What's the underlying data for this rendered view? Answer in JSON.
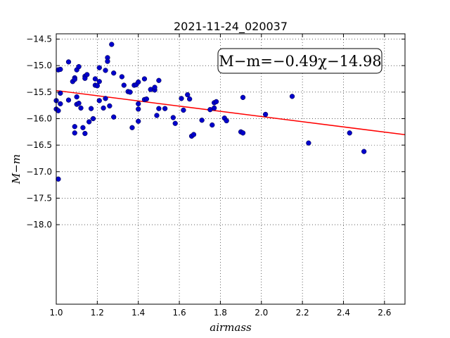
{
  "chart_data": {
    "type": "scatter",
    "title": "2021-11-24_020037",
    "xlabel": "airmass",
    "ylabel": "M−m",
    "xlim": [
      1.0,
      2.7
    ],
    "ylim": [
      -14.4,
      -19.5
    ],
    "y_inverted": true,
    "grid": true,
    "x_ticks": [
      1.0,
      1.2,
      1.4,
      1.6,
      1.8,
      2.0,
      2.2,
      2.4,
      2.6
    ],
    "x_tick_labels": [
      "1.0",
      "1.2",
      "1.4",
      "1.6",
      "1.8",
      "2.0",
      "2.2",
      "2.4",
      "2.6"
    ],
    "y_ticks": [
      -14.5,
      -15.0,
      -15.5,
      -16.0,
      -16.5,
      -17.0,
      -17.5,
      -18.0
    ],
    "y_tick_labels": [
      "−14.5",
      "−15.0",
      "−15.5",
      "−16.0",
      "−16.5",
      "−17.0",
      "−17.5",
      "−18.0"
    ],
    "annotation": "M−m=−0.49χ−14.98",
    "fit": {
      "slope": -0.49,
      "intercept": -14.98,
      "color": "#ff0000"
    },
    "point_color": "#0000cc",
    "points": [
      [
        1.0,
        -15.66
      ],
      [
        1.0,
        -15.82
      ],
      [
        1.01,
        -15.85
      ],
      [
        1.01,
        -17.14
      ],
      [
        1.01,
        -15.08
      ],
      [
        1.02,
        -15.07
      ],
      [
        1.02,
        -15.52
      ],
      [
        1.02,
        -15.72
      ],
      [
        1.06,
        -14.93
      ],
      [
        1.06,
        -15.65
      ],
      [
        1.08,
        -15.3
      ],
      [
        1.09,
        -15.23
      ],
      [
        1.09,
        -15.26
      ],
      [
        1.09,
        -16.15
      ],
      [
        1.09,
        -16.27
      ],
      [
        1.1,
        -15.08
      ],
      [
        1.1,
        -15.59
      ],
      [
        1.1,
        -15.73
      ],
      [
        1.11,
        -15.02
      ],
      [
        1.11,
        -15.71
      ],
      [
        1.12,
        -15.8
      ],
      [
        1.13,
        -16.17
      ],
      [
        1.14,
        -15.2
      ],
      [
        1.14,
        -15.24
      ],
      [
        1.14,
        -16.28
      ],
      [
        1.15,
        -15.17
      ],
      [
        1.16,
        -16.06
      ],
      [
        1.17,
        -15.81
      ],
      [
        1.18,
        -16.0
      ],
      [
        1.19,
        -15.25
      ],
      [
        1.19,
        -15.37
      ],
      [
        1.2,
        -15.38
      ],
      [
        1.21,
        -15.04
      ],
      [
        1.21,
        -15.3
      ],
      [
        1.21,
        -15.66
      ],
      [
        1.23,
        -15.8
      ],
      [
        1.24,
        -15.09
      ],
      [
        1.24,
        -15.62
      ],
      [
        1.25,
        -14.85
      ],
      [
        1.25,
        -14.92
      ],
      [
        1.26,
        -15.76
      ],
      [
        1.27,
        -14.6
      ],
      [
        1.28,
        -15.14
      ],
      [
        1.28,
        -15.97
      ],
      [
        1.32,
        -15.21
      ],
      [
        1.33,
        -15.37
      ],
      [
        1.35,
        -15.49
      ],
      [
        1.36,
        -15.5
      ],
      [
        1.37,
        -16.17
      ],
      [
        1.38,
        -15.37
      ],
      [
        1.39,
        -15.36
      ],
      [
        1.4,
        -15.31
      ],
      [
        1.4,
        -15.72
      ],
      [
        1.4,
        -15.82
      ],
      [
        1.4,
        -16.05
      ],
      [
        1.43,
        -15.25
      ],
      [
        1.43,
        -15.64
      ],
      [
        1.44,
        -15.63
      ],
      [
        1.46,
        -15.45
      ],
      [
        1.48,
        -15.46
      ],
      [
        1.48,
        -15.41
      ],
      [
        1.49,
        -15.94
      ],
      [
        1.5,
        -15.81
      ],
      [
        1.5,
        -15.28
      ],
      [
        1.53,
        -15.81
      ],
      [
        1.57,
        -15.98
      ],
      [
        1.58,
        -16.09
      ],
      [
        1.61,
        -15.62
      ],
      [
        1.62,
        -15.84
      ],
      [
        1.64,
        -15.55
      ],
      [
        1.65,
        -15.63
      ],
      [
        1.66,
        -16.33
      ],
      [
        1.67,
        -16.3
      ],
      [
        1.71,
        -16.03
      ],
      [
        1.75,
        -15.83
      ],
      [
        1.76,
        -16.12
      ],
      [
        1.77,
        -15.7
      ],
      [
        1.77,
        -15.8
      ],
      [
        1.78,
        -15.68
      ],
      [
        1.82,
        -15.99
      ],
      [
        1.83,
        -16.04
      ],
      [
        1.9,
        -16.25
      ],
      [
        1.91,
        -16.27
      ],
      [
        1.91,
        -15.6
      ],
      [
        2.02,
        -15.92
      ],
      [
        2.15,
        -15.58
      ],
      [
        2.23,
        -16.46
      ],
      [
        2.43,
        -16.27
      ],
      [
        2.5,
        -16.62
      ]
    ]
  }
}
